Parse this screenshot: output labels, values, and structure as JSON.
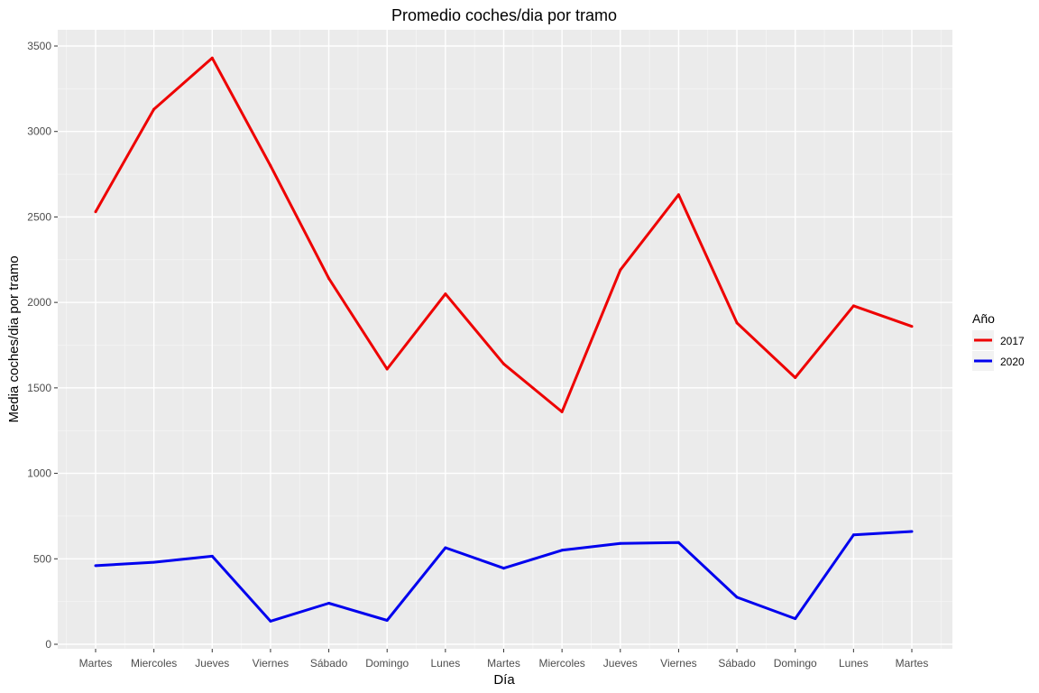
{
  "chart_data": {
    "type": "line",
    "title": "Promedio coches/dia por tramo",
    "xlabel": "Día",
    "ylabel": "Media coches/dia por tramo",
    "categories": [
      "Martes",
      "Miercoles",
      "Jueves",
      "Viernes",
      "Sábado",
      "Domingo",
      "Lunes",
      "Martes",
      "Miercoles",
      "Jueves",
      "Viernes",
      "Sábado",
      "Domingo",
      "Lunes",
      "Martes"
    ],
    "ylim": [
      0,
      3500
    ],
    "yticks": [
      0,
      500,
      1000,
      1500,
      2000,
      2500,
      3000,
      3500
    ],
    "grid": true,
    "legend": {
      "title": "Año",
      "placement": "right"
    },
    "series": [
      {
        "name": "2017",
        "color": "#ee0000",
        "values": [
          2530,
          3130,
          3430,
          2800,
          2140,
          1610,
          2050,
          1640,
          1360,
          2190,
          2630,
          1880,
          1560,
          1980,
          1860
        ]
      },
      {
        "name": "2020",
        "color": "#0000ee",
        "values": [
          460,
          480,
          515,
          135,
          240,
          140,
          565,
          445,
          550,
          590,
          595,
          275,
          150,
          640,
          660
        ]
      }
    ]
  }
}
